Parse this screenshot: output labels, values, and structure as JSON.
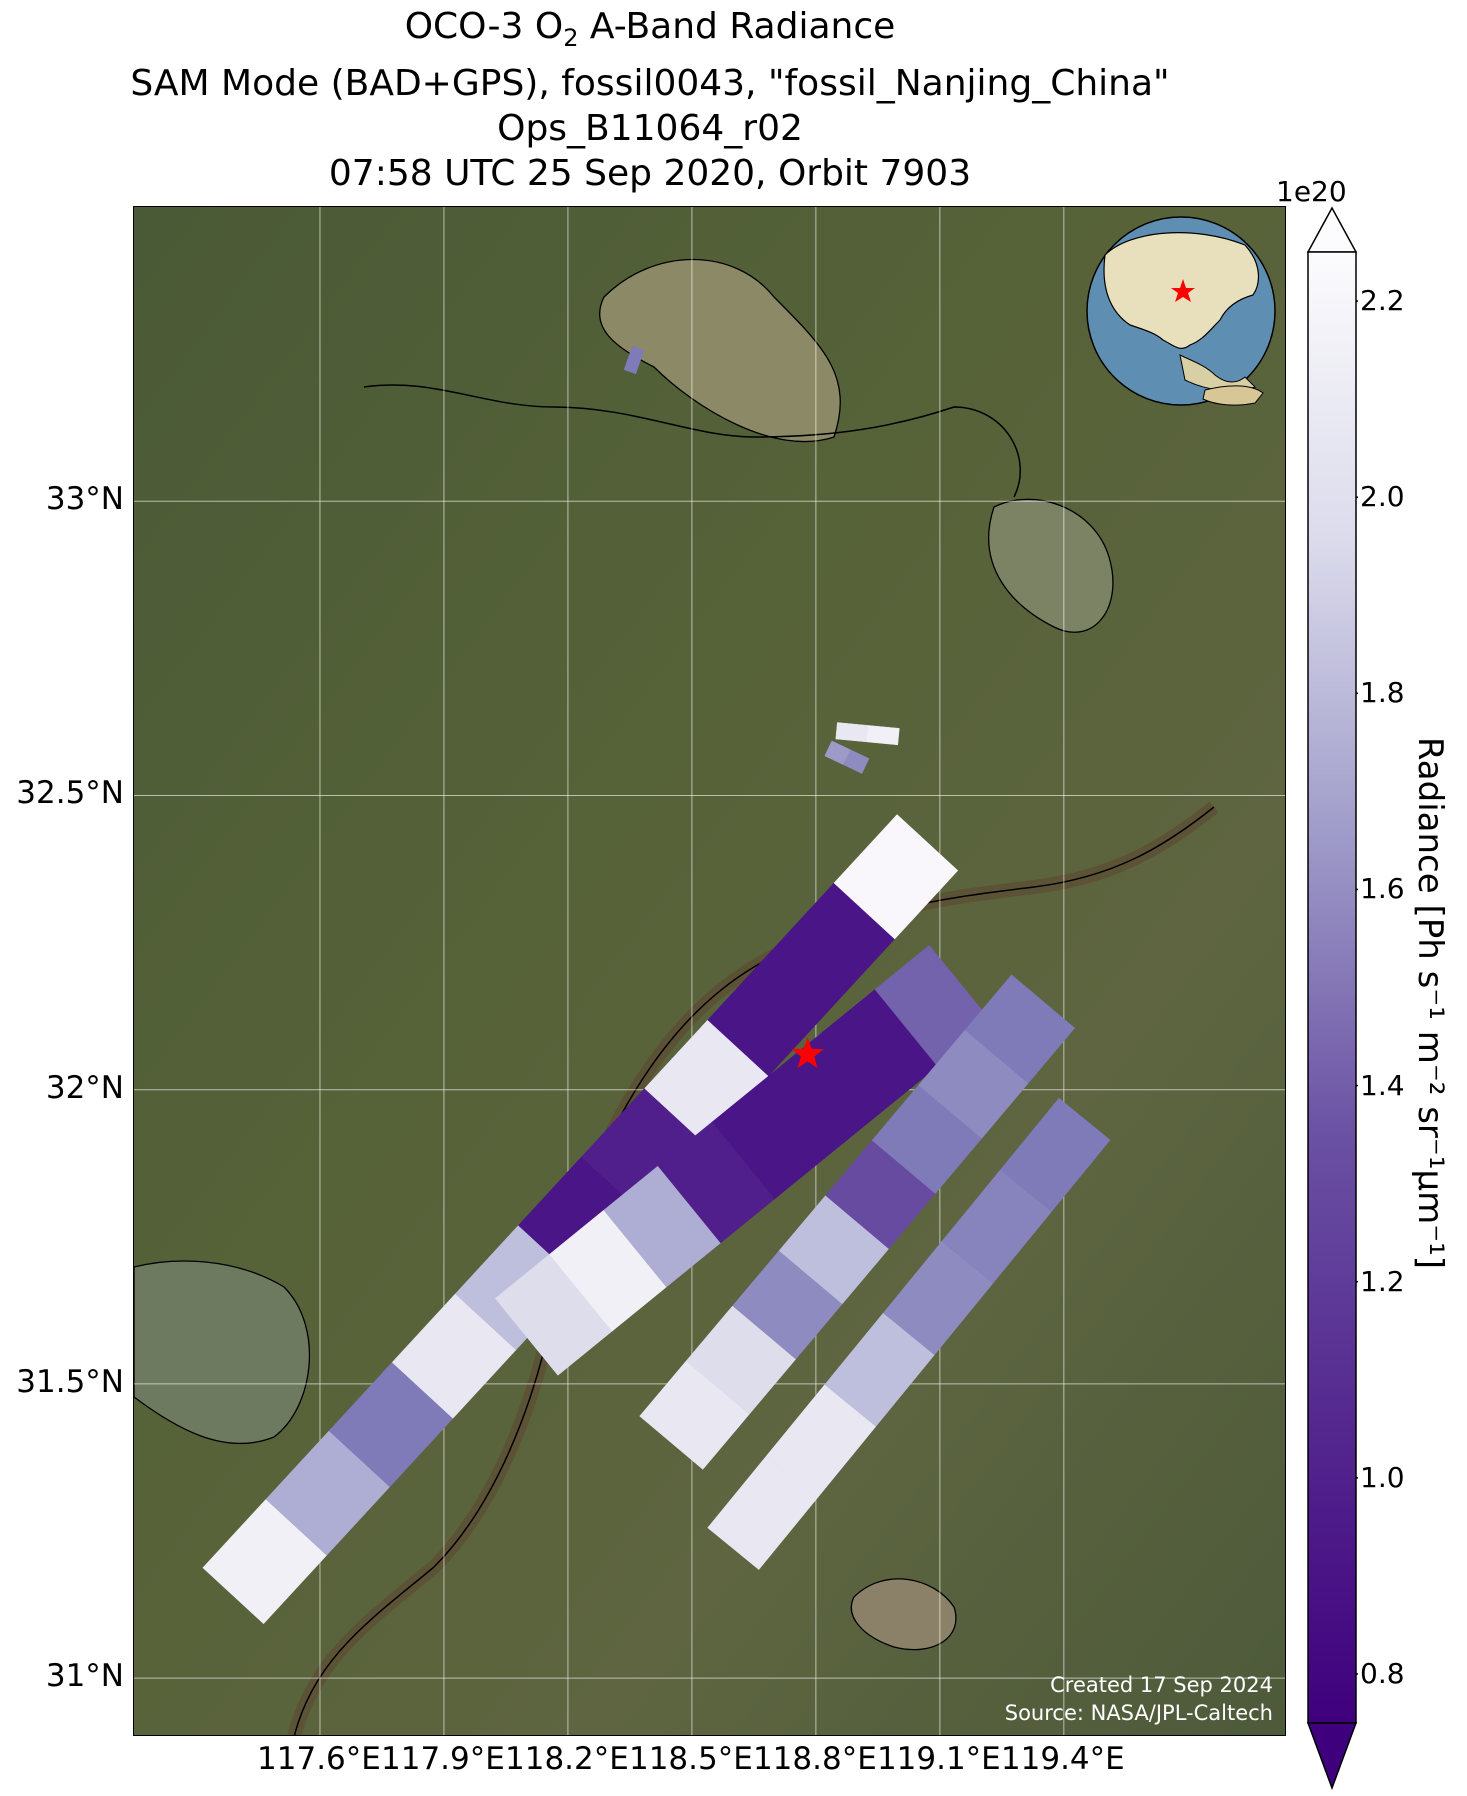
{
  "title": {
    "line1_pre": "OCO-3 O",
    "line1_sub": "2",
    "line1_post": " A-Band Radiance",
    "line2": "SAM Mode (BAD+GPS), fossil0043, \"fossil_Nanjing_China\"",
    "line3": "Ops_B11064_r02",
    "line4": "07:58 UTC 25 Sep 2020, Orbit 7903"
  },
  "map": {
    "lon_range": [
      117.15,
      119.94
    ],
    "lat_range": [
      30.9,
      33.5
    ],
    "lat_ticks": [
      "33°N",
      "32.5°N",
      "32°N",
      "31.5°N",
      "31°N"
    ],
    "lat_values": [
      33.0,
      32.5,
      32.0,
      31.5,
      31.0
    ],
    "lon_ticks": [
      "117.6°E",
      "117.9°E",
      "118.2°E",
      "118.5°E",
      "118.8°E",
      "119.1°E",
      "119.4°E"
    ],
    "lon_values": [
      117.6,
      117.9,
      118.2,
      118.5,
      118.8,
      119.1,
      119.4
    ],
    "gridlines": true,
    "basemap": "satellite imagery",
    "target_marker": {
      "name": "red-star",
      "lon": 118.78,
      "lat": 32.06,
      "color": "#ff0000"
    },
    "credits": {
      "line1": "Created 17 Sep 2024",
      "line2": "Source: NASA/JPL-Caltech"
    },
    "inset_globe": {
      "center": "East Asia",
      "marker": "red-star",
      "position": "top-right"
    }
  },
  "chart_data": {
    "type": "heatmap",
    "colormap": "Purples_r",
    "colorbar": {
      "range": [
        0.75,
        2.25
      ],
      "ticks": [
        "0.8",
        "1.0",
        "1.2",
        "1.4",
        "1.6",
        "1.8",
        "2.0",
        "2.2"
      ],
      "tick_values": [
        0.8,
        1.0,
        1.2,
        1.4,
        1.6,
        1.8,
        2.0,
        2.2
      ],
      "exponent": "1e20",
      "label": "Radiance [Ph s⁻¹ m⁻² sr⁻¹μm⁻¹]",
      "extend": "both"
    },
    "swaths": [
      {
        "name": "swath-1",
        "lon_start": 117.39,
        "lat_start": 31.14,
        "lon_end": 119.07,
        "lat_end": 32.42,
        "width_deg": 0.1,
        "radiance_along": [
          2.1,
          1.6,
          1.3,
          2.0,
          1.7,
          0.85,
          0.9,
          2.0,
          0.85,
          0.85,
          2.2
        ]
      },
      {
        "name": "swath-2",
        "lon_start": 118.1,
        "lat_start": 31.58,
        "lon_end": 119.15,
        "lat_end": 32.18,
        "width_deg": 0.12,
        "radiance_along": [
          1.9,
          2.1,
          1.6,
          0.9,
          0.85,
          0.85,
          0.85,
          1.2
        ]
      },
      {
        "name": "swath-3",
        "lon_start": 118.45,
        "lat_start": 31.4,
        "lon_end": 119.35,
        "lat_end": 32.15,
        "width_deg": 0.1,
        "radiance_along": [
          2.0,
          1.9,
          1.4,
          1.7,
          1.1,
          1.3,
          1.4,
          1.3
        ]
      },
      {
        "name": "swath-4",
        "lon_start": 118.6,
        "lat_start": 31.22,
        "lon_end": 119.45,
        "lat_end": 31.95,
        "width_deg": 0.08,
        "radiance_along": [
          2.0,
          2.0,
          1.7,
          1.4,
          1.35,
          1.3
        ]
      },
      {
        "name": "small-patch-1",
        "lon_start": 118.85,
        "lat_start": 32.61,
        "lon_end": 119.0,
        "lat_end": 32.6,
        "width_deg": 0.02,
        "radiance_along": [
          2.0,
          2.1
        ]
      },
      {
        "name": "small-patch-2",
        "lon_start": 118.83,
        "lat_start": 32.58,
        "lon_end": 118.92,
        "lat_end": 32.55,
        "width_deg": 0.02,
        "radiance_along": [
          1.5,
          1.4
        ]
      },
      {
        "name": "small-patch-3",
        "lon_start": 118.35,
        "lat_start": 33.22,
        "lon_end": 118.37,
        "lat_end": 33.26,
        "width_deg": 0.015,
        "radiance_along": [
          1.3
        ]
      }
    ]
  }
}
